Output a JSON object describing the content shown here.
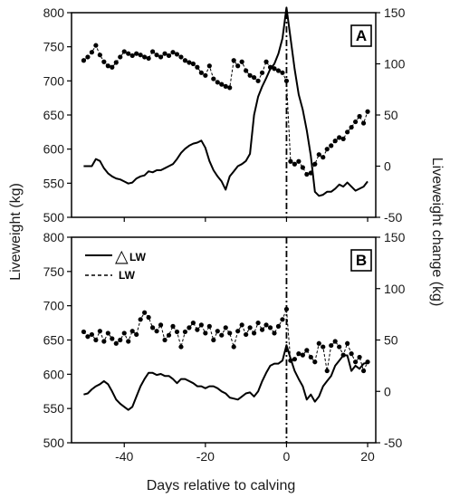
{
  "chart_data": {
    "type": "line",
    "xlabel": "Days relative to calving",
    "ylabel_left": "Liveweight (kg)",
    "ylabel_right": "Liveweight change (kg)",
    "x_ticks": [
      -40,
      -20,
      0,
      20
    ],
    "xlim": [
      -53,
      22
    ],
    "ylim_left": [
      500,
      800
    ],
    "y_ticks_left": [
      500,
      550,
      600,
      650,
      700,
      750,
      800
    ],
    "ylim_right": [
      -50,
      150
    ],
    "y_ticks_right": [
      -50,
      0,
      50,
      100,
      150
    ],
    "calving_day": 0,
    "legend": {
      "placement": "top-left of panel B",
      "delta_symbol": "△",
      "delta_label": "LW",
      "lw_label": "LW"
    },
    "colors": {
      "lines": "#000000",
      "axes": "#000000"
    },
    "panels": [
      {
        "label": "A",
        "series": [
          {
            "name": "LW",
            "style": "dashed-with-markers",
            "axis": "left",
            "x": [
              -50,
              -49,
              -48,
              -47,
              -46,
              -45,
              -44,
              -43,
              -42,
              -41,
              -40,
              -39,
              -38,
              -37,
              -36,
              -35,
              -34,
              -33,
              -32,
              -31,
              -30,
              -29,
              -28,
              -27,
              -26,
              -25,
              -24,
              -23,
              -22,
              -21,
              -20,
              -19,
              -18,
              -17,
              -16,
              -15,
              -14,
              -13,
              -12,
              -11,
              -10,
              -9,
              -8,
              -7,
              -6,
              -5,
              -4,
              -3,
              -2,
              -1,
              0,
              1,
              2,
              3,
              4,
              5,
              6,
              7,
              8,
              9,
              10,
              11,
              12,
              13,
              14,
              15,
              16,
              17,
              18,
              19,
              20
            ],
            "y": [
              730,
              735,
              742,
              752,
              738,
              728,
              722,
              720,
              727,
              735,
              743,
              740,
              737,
              740,
              738,
              735,
              733,
              743,
              738,
              735,
              740,
              737,
              742,
              739,
              735,
              730,
              727,
              725,
              720,
              712,
              708,
              722,
              703,
              698,
              695,
              692,
              690,
              730,
              722,
              728,
              715,
              708,
              705,
              700,
              712,
              728,
              720,
              718,
              715,
              712,
              700,
              582,
              578,
              582,
              573,
              563,
              565,
              578,
              592,
              588,
              600,
              605,
              612,
              617,
              615,
              625,
              632,
              640,
              648,
              638,
              655
            ]
          },
          {
            "name": "△LW",
            "style": "solid",
            "axis": "right",
            "x": [
              -50,
              -48,
              -47,
              -46,
              -45,
              -44,
              -43,
              -42,
              -41,
              -40,
              -39,
              -38,
              -37,
              -36,
              -35,
              -34,
              -33,
              -32,
              -31,
              -30,
              -29,
              -28,
              -27,
              -26,
              -25,
              -24,
              -23,
              -22,
              -21,
              -20,
              -19,
              -18,
              -17,
              -16,
              -15,
              -14,
              -13,
              -12,
              -11,
              -10,
              -9,
              -8,
              -7,
              -6,
              -5,
              -4,
              -3,
              -2,
              -1,
              0,
              1,
              2,
              3,
              4,
              5,
              6,
              7,
              8,
              9,
              10,
              11,
              12,
              13,
              14,
              15,
              16,
              17,
              18,
              19,
              20
            ],
            "y": [
              0,
              0,
              7,
              5,
              -2,
              -7,
              -10,
              -12,
              -13,
              -15,
              -17,
              -16,
              -12,
              -10,
              -9,
              -5,
              -6,
              -4,
              -4,
              -2,
              0,
              2,
              7,
              13,
              17,
              20,
              22,
              23,
              25,
              18,
              5,
              -4,
              -10,
              -15,
              -23,
              -10,
              -5,
              0,
              2,
              5,
              12,
              50,
              68,
              78,
              86,
              95,
              100,
              110,
              125,
              155,
              125,
              95,
              70,
              55,
              35,
              10,
              -25,
              -29,
              -28,
              -25,
              -25,
              -22,
              -18,
              -20,
              -16,
              -20,
              -24,
              -22,
              -20,
              -15
            ]
          }
        ]
      },
      {
        "label": "B",
        "series": [
          {
            "name": "LW",
            "style": "dashed-with-markers",
            "axis": "left",
            "x": [
              -50,
              -49,
              -48,
              -47,
              -46,
              -45,
              -44,
              -43,
              -42,
              -41,
              -40,
              -39,
              -38,
              -37,
              -36,
              -35,
              -34,
              -33,
              -32,
              -31,
              -30,
              -29,
              -28,
              -27,
              -26,
              -25,
              -24,
              -23,
              -22,
              -21,
              -20,
              -19,
              -18,
              -17,
              -16,
              -15,
              -14,
              -13,
              -12,
              -11,
              -10,
              -9,
              -8,
              -7,
              -6,
              -5,
              -4,
              -3,
              -2,
              -1,
              0,
              1,
              2,
              3,
              4,
              5,
              6,
              7,
              8,
              9,
              10,
              11,
              12,
              13,
              14,
              15,
              16,
              17,
              18,
              19,
              20
            ],
            "y": [
              662,
              655,
              658,
              650,
              663,
              648,
              660,
              652,
              645,
              650,
              660,
              648,
              663,
              658,
              680,
              690,
              683,
              668,
              663,
              672,
              650,
              657,
              670,
              662,
              640,
              662,
              668,
              675,
              665,
              672,
              660,
              670,
              650,
              663,
              657,
              668,
              660,
              640,
              663,
              672,
              658,
              668,
              660,
              675,
              665,
              672,
              668,
              660,
              670,
              680,
              695,
              620,
              622,
              630,
              628,
              635,
              625,
              618,
              645,
              640,
              605,
              642,
              648,
              640,
              628,
              645,
              630,
              618,
              625,
              605,
              618
            ]
          },
          {
            "name": "△LW",
            "style": "solid",
            "axis": "right",
            "x": [
              -50,
              -49,
              -48,
              -47,
              -46,
              -45,
              -44,
              -43,
              -42,
              -41,
              -40,
              -39,
              -38,
              -37,
              -36,
              -35,
              -34,
              -33,
              -32,
              -31,
              -30,
              -29,
              -28,
              -27,
              -26,
              -25,
              -24,
              -23,
              -22,
              -21,
              -20,
              -19,
              -18,
              -17,
              -16,
              -15,
              -14,
              -13,
              -12,
              -11,
              -10,
              -9,
              -8,
              -7,
              -6,
              -5,
              -4,
              -3,
              -2,
              -1,
              0,
              1,
              2,
              3,
              4,
              5,
              6,
              7,
              8,
              9,
              10,
              11,
              12,
              13,
              14,
              15,
              16,
              17,
              18,
              19,
              20
            ],
            "y": [
              -3,
              -2,
              2,
              5,
              7,
              10,
              7,
              0,
              -8,
              -12,
              -15,
              -18,
              -15,
              -5,
              5,
              12,
              18,
              18,
              16,
              17,
              15,
              15,
              12,
              8,
              12,
              12,
              10,
              8,
              5,
              5,
              3,
              5,
              5,
              3,
              0,
              -2,
              -6,
              -7,
              -8,
              -5,
              -2,
              -1,
              -5,
              0,
              10,
              18,
              25,
              27,
              27,
              30,
              45,
              32,
              20,
              12,
              5,
              -8,
              -3,
              -10,
              -5,
              5,
              10,
              15,
              25,
              30,
              35,
              35,
              20,
              25,
              22,
              27,
              28
            ]
          }
        ]
      }
    ]
  }
}
